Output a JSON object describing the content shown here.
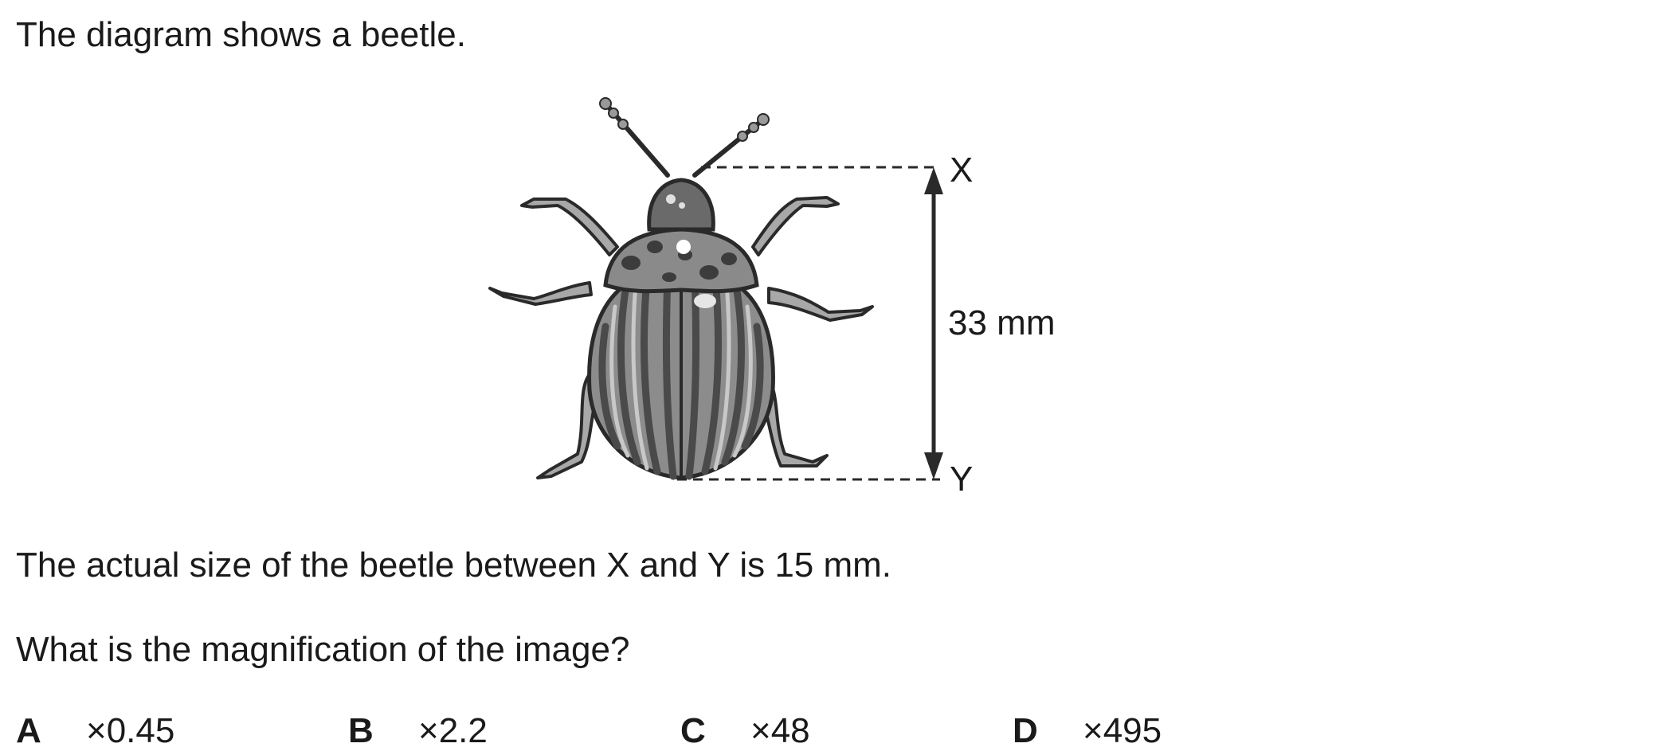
{
  "intro": "The diagram shows a beetle.",
  "figure": {
    "label_top": "X",
    "label_bottom": "Y",
    "measurement": "33 mm"
  },
  "actual_size": "The actual size of the beetle between X and Y is 15 mm.",
  "question": "What is the magnification of the image?",
  "options": [
    {
      "letter": "A",
      "value": "×0.45"
    },
    {
      "letter": "B",
      "value": "×2.2"
    },
    {
      "letter": "C",
      "value": "×48"
    },
    {
      "letter": "D",
      "value": "×495"
    }
  ]
}
